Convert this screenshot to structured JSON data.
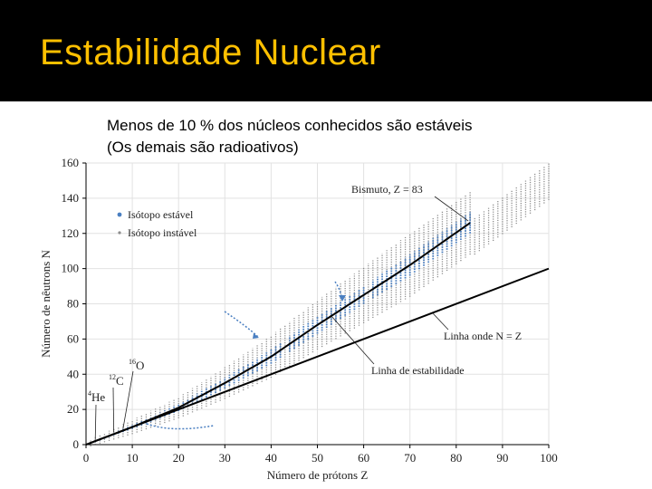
{
  "slide": {
    "title": "Estabilidade Nuclear",
    "subtitle_line1": "Menos de 10 % dos núcleos conhecidos são estáveis",
    "subtitle_line2": "(Os demais são radioativos)"
  },
  "colors": {
    "title_bar": "#000000",
    "title_text": "#FFC000",
    "stable": "#4A7FC1",
    "unstable": "#8C8C8C",
    "line": "#000000"
  },
  "chart_data": {
    "type": "scatter",
    "xlabel": "Número de prótons Z",
    "ylabel": "Número de nêutrons N",
    "xlim": [
      0,
      100
    ],
    "ylim": [
      0,
      160
    ],
    "xticks": [
      "0",
      "10",
      "20",
      "30",
      "40",
      "50",
      "60",
      "70",
      "80",
      "90",
      "100"
    ],
    "yticks": [
      "0",
      "20",
      "40",
      "60",
      "80",
      "100",
      "120",
      "140",
      "160"
    ],
    "legend": [
      {
        "name": "Isótopo estável",
        "marker": "stable"
      },
      {
        "name": "Isótopo instável",
        "marker": "unstable"
      }
    ],
    "stability_band": {
      "name": "Linha de estabilidade",
      "z": [
        1,
        10,
        20,
        30,
        40,
        50,
        60,
        70,
        83
      ],
      "n": [
        1,
        10,
        21,
        35,
        50,
        68,
        85,
        102,
        126
      ],
      "stable_halfwidth": [
        0.5,
        1,
        2,
        3,
        4,
        5,
        5,
        6,
        6
      ],
      "unstable_halfwidth": [
        2,
        4,
        6,
        9,
        12,
        14,
        16,
        18,
        18
      ],
      "tail_z": [
        84,
        100
      ],
      "tail_n": [
        126,
        157
      ]
    },
    "n_equals_z": {
      "name": "Linha onde N = Z",
      "z": [
        0,
        100
      ],
      "n": [
        0,
        100
      ]
    },
    "annotations": {
      "bismuth": {
        "text": "Bismuto, Z = 83",
        "z": 83,
        "n": 126
      },
      "line_nz": {
        "text": "Linha onde N = Z",
        "z": 75
      },
      "band": {
        "text": "Linha de estabilidade",
        "z": 53
      },
      "o16": {
        "text": "O",
        "mass": "16",
        "z": 8,
        "n": 8
      },
      "c12": {
        "text": "C",
        "mass": "12",
        "z": 6,
        "n": 6
      },
      "he4": {
        "text": "He",
        "mass": "4",
        "z": 2,
        "n": 2
      }
    }
  }
}
